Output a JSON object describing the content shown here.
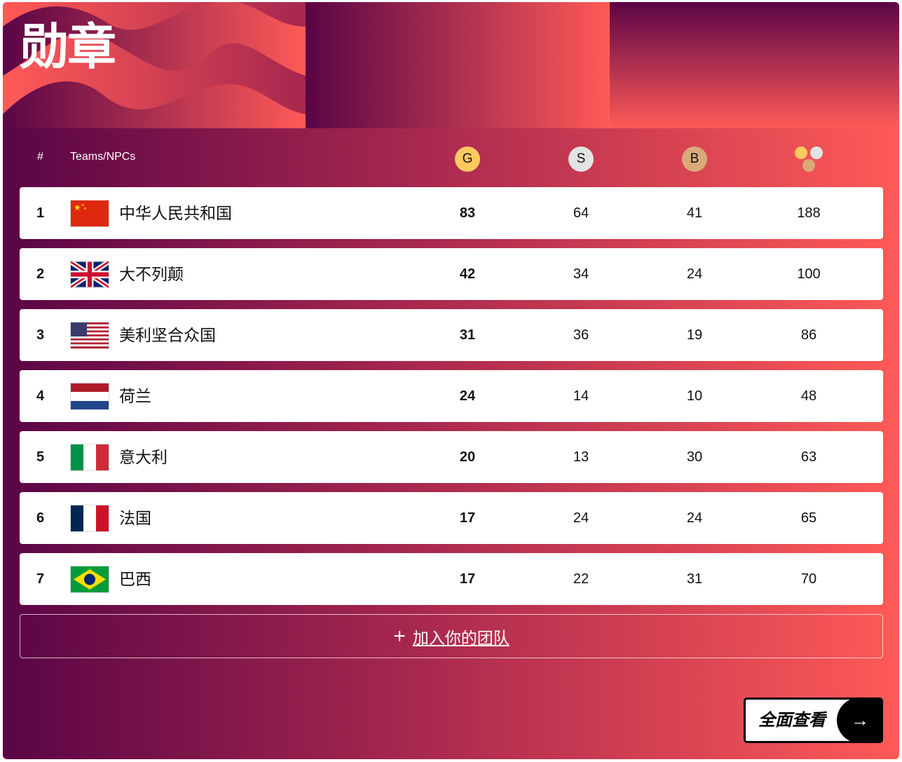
{
  "title": "勋章",
  "header": {
    "rank": "#",
    "team": "Teams/NPCs",
    "gold": "G",
    "silver": "S",
    "bronze": "B"
  },
  "colors": {
    "gold": "#ffc95f",
    "silver": "#e3e3e3",
    "bronze": "#d9aa78",
    "gradient_start": "#5a0546",
    "gradient_end": "#ff5a57"
  },
  "rows": [
    {
      "rank": "1",
      "name": "中华人民共和国",
      "flag": "china-flag",
      "gold": "83",
      "silver": "64",
      "bronze": "41",
      "total": "188"
    },
    {
      "rank": "2",
      "name": "大不列颠",
      "flag": "uk-flag",
      "gold": "42",
      "silver": "34",
      "bronze": "24",
      "total": "100"
    },
    {
      "rank": "3",
      "name": "美利坚合众国",
      "flag": "usa-flag",
      "gold": "31",
      "silver": "36",
      "bronze": "19",
      "total": "86"
    },
    {
      "rank": "4",
      "name": "荷兰",
      "flag": "netherlands-flag",
      "gold": "24",
      "silver": "14",
      "bronze": "10",
      "total": "48"
    },
    {
      "rank": "5",
      "name": "意大利",
      "flag": "italy-flag",
      "gold": "20",
      "silver": "13",
      "bronze": "30",
      "total": "63"
    },
    {
      "rank": "6",
      "name": "法国",
      "flag": "france-flag",
      "gold": "17",
      "silver": "24",
      "bronze": "24",
      "total": "65"
    },
    {
      "rank": "7",
      "name": "巴西",
      "flag": "brazil-flag",
      "gold": "17",
      "silver": "22",
      "bronze": "31",
      "total": "70"
    }
  ],
  "add_team": {
    "icon": "plus-icon",
    "label": "加入你的团队"
  },
  "view_all": {
    "label": "全面查看",
    "icon": "arrow-right-icon"
  }
}
